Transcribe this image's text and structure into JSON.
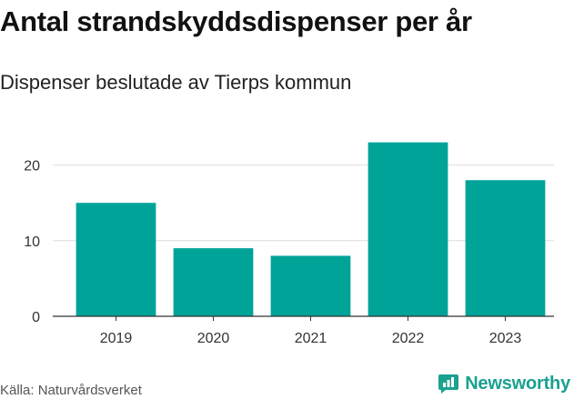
{
  "title": "Antal strandskyddsdispenser per år",
  "subtitle": "Dispenser beslutade av Tierps kommun",
  "source": "Källa: Naturvårdsverket",
  "brand": "Newsworthy",
  "colors": {
    "bar": "#00a398",
    "grid": "#dddddd",
    "brand": "#1aa190"
  },
  "chart_data": {
    "type": "bar",
    "title": "Antal strandskyddsdispenser per år",
    "subtitle": "Dispenser beslutade av Tierps kommun",
    "categories": [
      "2019",
      "2020",
      "2021",
      "2022",
      "2023"
    ],
    "values": [
      15,
      9,
      8,
      23,
      18
    ],
    "xlabel": "",
    "ylabel": "",
    "ylim": [
      0,
      25
    ],
    "yticks": [
      0,
      10,
      20
    ],
    "grid": true
  }
}
